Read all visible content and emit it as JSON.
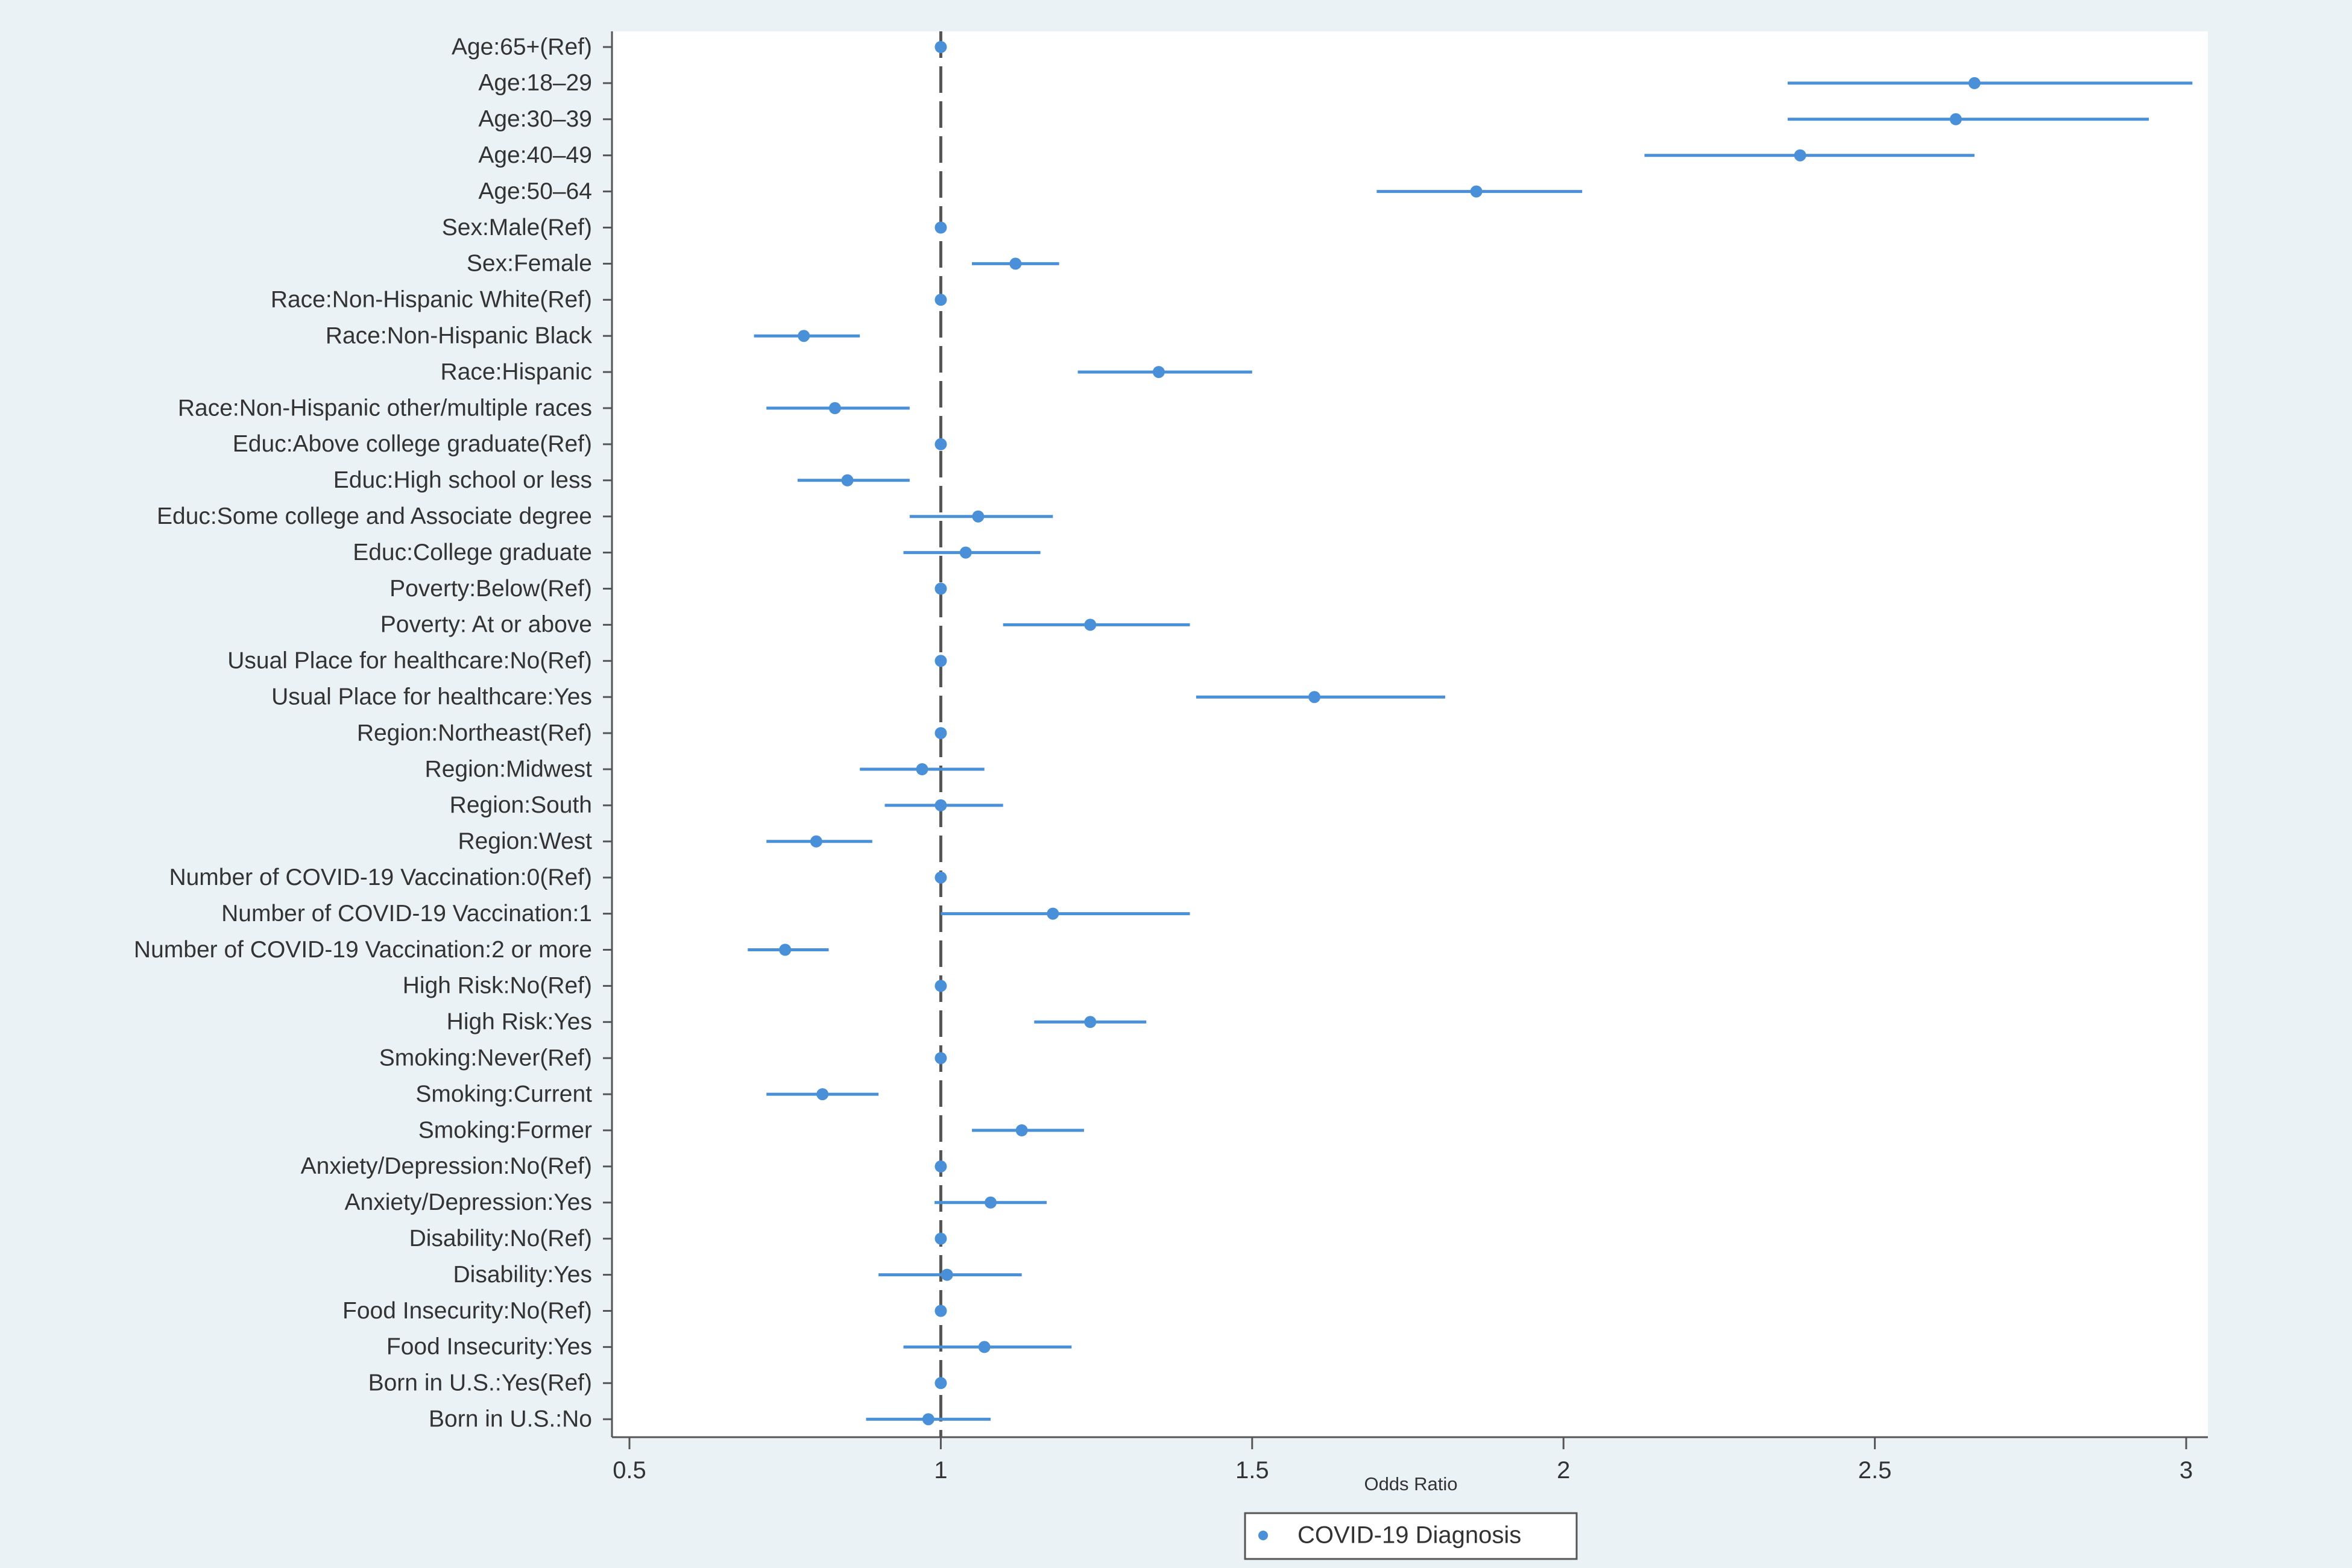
{
  "chart_data": {
    "type": "scatter",
    "subtype": "forest-plot",
    "title": "",
    "xlabel": "Odds Ratio",
    "ylabel": "",
    "xlim": [
      0.5,
      3.0
    ],
    "xticks": [
      "0.5",
      "1",
      "1.5",
      "2",
      "2.5",
      "3"
    ],
    "reference_line": 1,
    "grid": false,
    "legend_position": "bottom-center",
    "series": [
      {
        "name": "COVID-19 Diagnosis",
        "color": "#4a90d9",
        "points": [
          {
            "label": "Age:65+(Ref)",
            "or": 1.0,
            "lo": 1.0,
            "hi": 1.0
          },
          {
            "label": "Age:18–29",
            "or": 2.66,
            "lo": 2.36,
            "hi": 3.01
          },
          {
            "label": "Age:30–39",
            "or": 2.63,
            "lo": 2.36,
            "hi": 2.94
          },
          {
            "label": "Age:40–49",
            "or": 2.38,
            "lo": 2.13,
            "hi": 2.66
          },
          {
            "label": "Age:50–64",
            "or": 1.86,
            "lo": 1.7,
            "hi": 2.03
          },
          {
            "label": "Sex:Male(Ref)",
            "or": 1.0,
            "lo": 1.0,
            "hi": 1.0
          },
          {
            "label": "Sex:Female",
            "or": 1.12,
            "lo": 1.05,
            "hi": 1.19
          },
          {
            "label": "Race:Non-Hispanic White(Ref)",
            "or": 1.0,
            "lo": 1.0,
            "hi": 1.0
          },
          {
            "label": "Race:Non-Hispanic Black",
            "or": 0.78,
            "lo": 0.7,
            "hi": 0.87
          },
          {
            "label": "Race:Hispanic",
            "or": 1.35,
            "lo": 1.22,
            "hi": 1.5
          },
          {
            "label": "Race:Non-Hispanic other/multiple races",
            "or": 0.83,
            "lo": 0.72,
            "hi": 0.95
          },
          {
            "label": "Educ:Above college graduate(Ref)",
            "or": 1.0,
            "lo": 1.0,
            "hi": 1.0
          },
          {
            "label": "Educ:High school or less",
            "or": 0.85,
            "lo": 0.77,
            "hi": 0.95
          },
          {
            "label": "Educ:Some college and Associate degree",
            "or": 1.06,
            "lo": 0.95,
            "hi": 1.18
          },
          {
            "label": "Educ:College graduate",
            "or": 1.04,
            "lo": 0.94,
            "hi": 1.16
          },
          {
            "label": "Poverty:Below(Ref)",
            "or": 1.0,
            "lo": 1.0,
            "hi": 1.0
          },
          {
            "label": "Poverty: At or above",
            "or": 1.24,
            "lo": 1.1,
            "hi": 1.4
          },
          {
            "label": "Usual Place for healthcare:No(Ref)",
            "or": 1.0,
            "lo": 1.0,
            "hi": 1.0
          },
          {
            "label": "Usual Place for healthcare:Yes",
            "or": 1.6,
            "lo": 1.41,
            "hi": 1.81
          },
          {
            "label": "Region:Northeast(Ref)",
            "or": 1.0,
            "lo": 1.0,
            "hi": 1.0
          },
          {
            "label": "Region:Midwest",
            "or": 0.97,
            "lo": 0.87,
            "hi": 1.07
          },
          {
            "label": "Region:South",
            "or": 1.0,
            "lo": 0.91,
            "hi": 1.1
          },
          {
            "label": "Region:West",
            "or": 0.8,
            "lo": 0.72,
            "hi": 0.89
          },
          {
            "label": "Number of COVID-19 Vaccination:0(Ref)",
            "or": 1.0,
            "lo": 1.0,
            "hi": 1.0
          },
          {
            "label": "Number of COVID-19 Vaccination:1",
            "or": 1.18,
            "lo": 1.0,
            "hi": 1.4
          },
          {
            "label": "Number of COVID-19 Vaccination:2 or more",
            "or": 0.75,
            "lo": 0.69,
            "hi": 0.82
          },
          {
            "label": "High Risk:No(Ref)",
            "or": 1.0,
            "lo": 1.0,
            "hi": 1.0
          },
          {
            "label": "High Risk:Yes",
            "or": 1.24,
            "lo": 1.15,
            "hi": 1.33
          },
          {
            "label": "Smoking:Never(Ref)",
            "or": 1.0,
            "lo": 1.0,
            "hi": 1.0
          },
          {
            "label": "Smoking:Current",
            "or": 0.81,
            "lo": 0.72,
            "hi": 0.9
          },
          {
            "label": "Smoking:Former",
            "or": 1.13,
            "lo": 1.05,
            "hi": 1.23
          },
          {
            "label": "Anxiety/Depression:No(Ref)",
            "or": 1.0,
            "lo": 1.0,
            "hi": 1.0
          },
          {
            "label": "Anxiety/Depression:Yes",
            "or": 1.08,
            "lo": 0.99,
            "hi": 1.17
          },
          {
            "label": "Disability:No(Ref)",
            "or": 1.0,
            "lo": 1.0,
            "hi": 1.0
          },
          {
            "label": "Disability:Yes",
            "or": 1.01,
            "lo": 0.9,
            "hi": 1.13
          },
          {
            "label": "Food Insecurity:No(Ref)",
            "or": 1.0,
            "lo": 1.0,
            "hi": 1.0
          },
          {
            "label": "Food Insecurity:Yes",
            "or": 1.07,
            "lo": 0.94,
            "hi": 1.21
          },
          {
            "label": "Born in U.S.:Yes(Ref)",
            "or": 1.0,
            "lo": 1.0,
            "hi": 1.0
          },
          {
            "label": "Born in U.S.:No",
            "or": 0.98,
            "lo": 0.88,
            "hi": 1.08
          }
        ]
      }
    ]
  }
}
